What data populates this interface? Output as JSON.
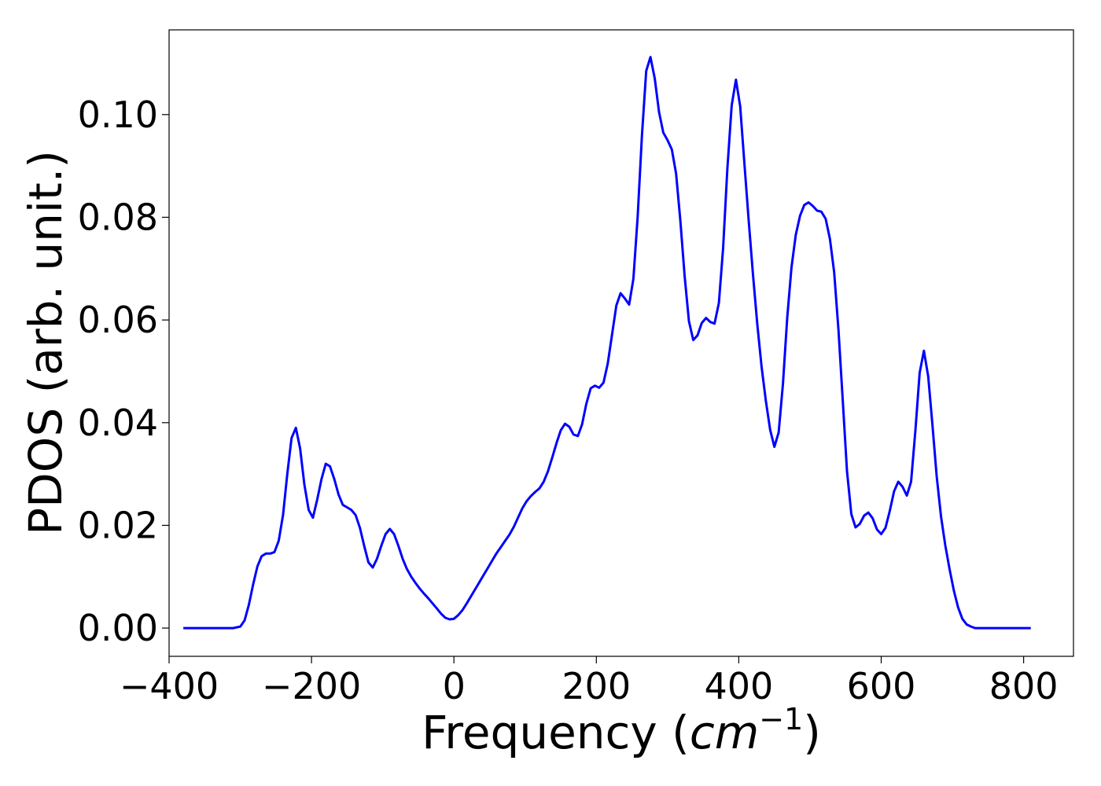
{
  "chart_data": {
    "type": "line",
    "title": "",
    "xlabel": {
      "text": "Frequency (",
      "math_base": "cm",
      "math_exp": "−1",
      "close": ")"
    },
    "ylabel": "PDOS (arb. unit.)",
    "xlim": [
      -400,
      870
    ],
    "ylim": [
      -0.0055,
      0.1165
    ],
    "xticks": [
      -400,
      -200,
      0,
      200,
      400,
      600,
      800
    ],
    "xtick_labels": [
      "−400",
      "−200",
      "0",
      "200",
      "400",
      "600",
      "800"
    ],
    "yticks": [
      0.0,
      0.02,
      0.04,
      0.06,
      0.08,
      0.1
    ],
    "ytick_labels": [
      "0.00",
      "0.02",
      "0.04",
      "0.06",
      "0.08",
      "0.10"
    ],
    "grid": false,
    "legend": "none",
    "series": [
      {
        "color": "#0000ff",
        "x": [
          -380,
          -310,
          -300,
          -294,
          -288,
          -282,
          -276,
          -270,
          -264,
          -258,
          -252,
          -246,
          -240,
          -234,
          -228,
          -222,
          -216,
          -210,
          -204,
          -198,
          -192,
          -186,
          -180,
          -174,
          -168,
          -162,
          -156,
          -150,
          -144,
          -138,
          -132,
          -126,
          -120,
          -114,
          -108,
          -102,
          -96,
          -90,
          -84,
          -78,
          -72,
          -66,
          -60,
          -54,
          -48,
          -42,
          -36,
          -30,
          -24,
          -18,
          -12,
          -6,
          0,
          6,
          12,
          18,
          24,
          30,
          36,
          42,
          48,
          54,
          60,
          66,
          72,
          78,
          84,
          90,
          96,
          102,
          108,
          114,
          120,
          126,
          132,
          138,
          144,
          150,
          156,
          162,
          168,
          174,
          180,
          186,
          192,
          198,
          204,
          210,
          216,
          222,
          228,
          234,
          240,
          246,
          252,
          258,
          264,
          270,
          276,
          282,
          288,
          294,
          300,
          306,
          312,
          318,
          324,
          330,
          336,
          342,
          348,
          354,
          360,
          366,
          372,
          378,
          384,
          390,
          396,
          402,
          408,
          414,
          420,
          426,
          432,
          438,
          444,
          450,
          456,
          462,
          468,
          474,
          480,
          486,
          492,
          498,
          504,
          510,
          516,
          522,
          528,
          534,
          540,
          546,
          552,
          558,
          564,
          570,
          576,
          582,
          588,
          594,
          600,
          606,
          612,
          618,
          624,
          630,
          636,
          642,
          648,
          654,
          660,
          666,
          672,
          678,
          684,
          690,
          696,
          702,
          708,
          714,
          720,
          726,
          732,
          740,
          810
        ],
        "y": [
          0.0,
          0.0,
          0.0003,
          0.0015,
          0.0045,
          0.0085,
          0.012,
          0.014,
          0.0145,
          0.0145,
          0.0148,
          0.017,
          0.022,
          0.03,
          0.037,
          0.039,
          0.035,
          0.028,
          0.023,
          0.0215,
          0.025,
          0.029,
          0.032,
          0.0315,
          0.029,
          0.026,
          0.024,
          0.0235,
          0.023,
          0.022,
          0.0195,
          0.016,
          0.0128,
          0.0118,
          0.0135,
          0.016,
          0.0183,
          0.0193,
          0.0183,
          0.016,
          0.0135,
          0.0115,
          0.01,
          0.0088,
          0.0077,
          0.0067,
          0.0058,
          0.0048,
          0.0038,
          0.0028,
          0.002,
          0.0017,
          0.0018,
          0.0025,
          0.0035,
          0.0048,
          0.0062,
          0.0076,
          0.009,
          0.0104,
          0.0118,
          0.0132,
          0.0146,
          0.0158,
          0.017,
          0.0182,
          0.0197,
          0.0215,
          0.0233,
          0.0247,
          0.0257,
          0.0265,
          0.0272,
          0.0285,
          0.0305,
          0.0332,
          0.036,
          0.0385,
          0.0398,
          0.0392,
          0.0377,
          0.0374,
          0.0397,
          0.0437,
          0.0467,
          0.0472,
          0.0468,
          0.0478,
          0.0515,
          0.0571,
          0.0628,
          0.0652,
          0.0642,
          0.063,
          0.068,
          0.08,
          0.096,
          0.1085,
          0.1112,
          0.107,
          0.1005,
          0.0965,
          0.095,
          0.0932,
          0.0885,
          0.0792,
          0.0685,
          0.0598,
          0.0561,
          0.057,
          0.0594,
          0.0604,
          0.0596,
          0.0593,
          0.0633,
          0.074,
          0.0895,
          0.1018,
          0.1068,
          0.1016,
          0.0902,
          0.0792,
          0.0688,
          0.0591,
          0.0509,
          0.0443,
          0.0386,
          0.0353,
          0.0381,
          0.0476,
          0.0604,
          0.0702,
          0.0766,
          0.0803,
          0.0824,
          0.0829,
          0.0822,
          0.0813,
          0.0811,
          0.0797,
          0.0758,
          0.0693,
          0.058,
          0.0444,
          0.0306,
          0.0222,
          0.0196,
          0.0203,
          0.0219,
          0.0225,
          0.0214,
          0.0192,
          0.0183,
          0.0195,
          0.0228,
          0.0266,
          0.0285,
          0.0275,
          0.0258,
          0.0285,
          0.0385,
          0.0497,
          0.054,
          0.049,
          0.0395,
          0.0295,
          0.0217,
          0.0161,
          0.0115,
          0.0073,
          0.004,
          0.0018,
          0.0007,
          0.0003,
          0.0,
          0.0,
          0.0
        ]
      }
    ]
  }
}
